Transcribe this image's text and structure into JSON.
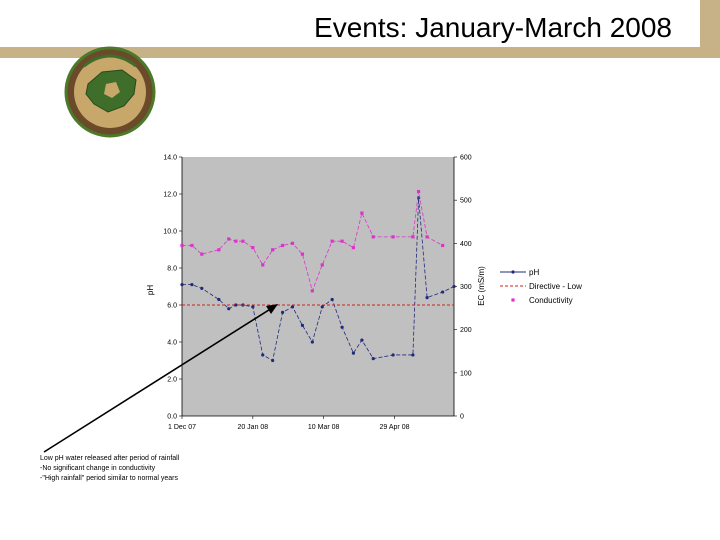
{
  "slide": {
    "title": "Events: January-March 2008"
  },
  "annotation": {
    "lines": [
      "Low pH water released after period of rainfall",
      "-No significant change in conductivity",
      "-\"High rainfall\" period similar to normal years"
    ]
  },
  "chart_data": {
    "type": "line",
    "title": "",
    "xlabel": "",
    "ylabel_left": "pH",
    "ylabel_right": "EC (mS/m)",
    "xlim": [
      "2007-12-01",
      "2008-06-10"
    ],
    "x_ticks": [
      "1 Dec 07",
      "20 Jan 08",
      "10 Mar 08",
      "29 Apr 08"
    ],
    "y_left": {
      "range": [
        0,
        14
      ],
      "ticks": [
        "0.0",
        "2.0",
        "4.0",
        "6.0",
        "8.0",
        "10.0",
        "12.0",
        "14.0"
      ]
    },
    "y_right": {
      "range": [
        0,
        600
      ],
      "ticks": [
        "0",
        "100",
        "200",
        "300",
        "400",
        "500",
        "600"
      ]
    },
    "grid": false,
    "background": "#c0c0c0",
    "legend_position": "right",
    "series": [
      {
        "name": "pH",
        "axis": "left",
        "color": "#1f2a7a",
        "style": "dash-marker",
        "x": [
          "2007-12-01",
          "2007-12-08",
          "2007-12-15",
          "2007-12-27",
          "2008-01-03",
          "2008-01-08",
          "2008-01-13",
          "2008-01-20",
          "2008-01-27",
          "2008-02-03",
          "2008-02-10",
          "2008-02-17",
          "2008-02-24",
          "2008-03-02",
          "2008-03-09",
          "2008-03-16",
          "2008-03-23",
          "2008-03-31",
          "2008-04-06",
          "2008-04-14",
          "2008-04-28",
          "2008-05-12",
          "2008-05-16",
          "2008-05-22",
          "2008-06-02",
          "2008-06-10"
        ],
        "y": [
          7.1,
          7.1,
          6.9,
          6.3,
          5.8,
          6.0,
          6.0,
          5.9,
          3.3,
          3.0,
          5.6,
          5.9,
          4.9,
          4.0,
          5.9,
          6.3,
          4.8,
          3.4,
          4.1,
          3.1,
          3.3,
          3.3,
          11.8,
          6.4,
          6.7,
          7.0
        ]
      },
      {
        "name": "Directive - Low",
        "axis": "left",
        "color": "#cc2020",
        "style": "dashed",
        "x": [
          "2007-12-01",
          "2008-06-10"
        ],
        "y": [
          6.0,
          6.0
        ]
      },
      {
        "name": "Conductivity",
        "axis": "right",
        "color": "#dd33cc",
        "style": "dash-marker",
        "x": [
          "2007-12-01",
          "2007-12-08",
          "2007-12-15",
          "2007-12-27",
          "2008-01-03",
          "2008-01-08",
          "2008-01-13",
          "2008-01-20",
          "2008-01-27",
          "2008-02-03",
          "2008-02-10",
          "2008-02-17",
          "2008-02-24",
          "2008-03-02",
          "2008-03-09",
          "2008-03-16",
          "2008-03-23",
          "2008-03-31",
          "2008-04-06",
          "2008-04-14",
          "2008-04-28",
          "2008-05-12",
          "2008-05-16",
          "2008-05-22",
          "2008-06-02"
        ],
        "y": [
          395,
          395,
          375,
          385,
          410,
          405,
          405,
          390,
          350,
          385,
          395,
          400,
          375,
          290,
          350,
          405,
          405,
          390,
          470,
          415,
          415,
          415,
          520,
          415,
          395
        ]
      }
    ]
  }
}
